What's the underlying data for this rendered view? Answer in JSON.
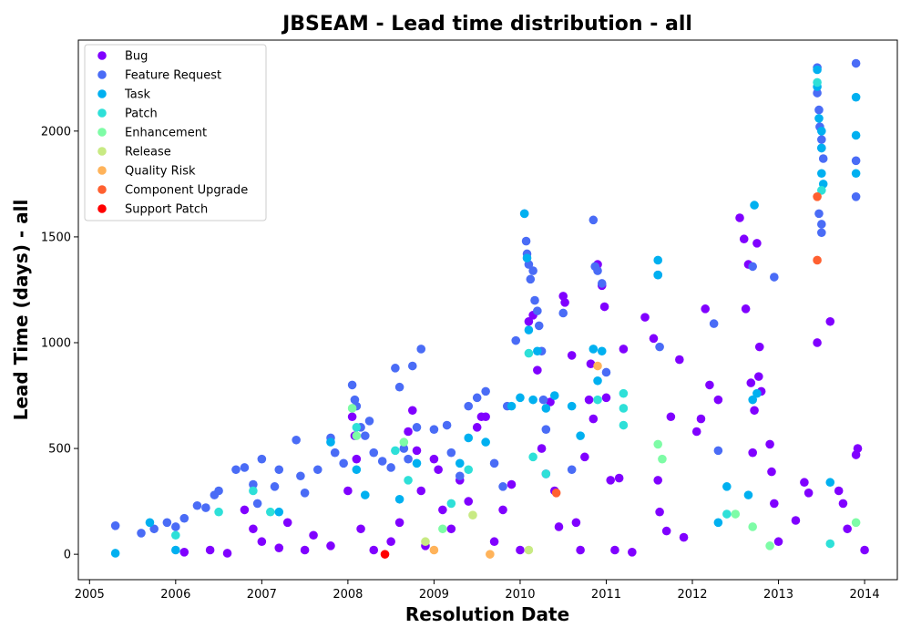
{
  "chart_data": {
    "type": "scatter",
    "title": "JBSEAM - Lead time distribution - all",
    "xlabel": "Resolution Date",
    "ylabel": "Lead Time (days) - all",
    "xlim": [
      2004.87,
      2014.38
    ],
    "ylim": [
      -120,
      2430
    ],
    "xticks": [
      2005,
      2006,
      2007,
      2008,
      2009,
      2010,
      2011,
      2012,
      2013,
      2014
    ],
    "yticks": [
      0,
      500,
      1000,
      1500,
      2000
    ],
    "grid": false,
    "legend_position": "top-left",
    "series": [
      {
        "name": "Bug",
        "color": "#8000ff",
        "points": [
          [
            2006.1,
            10
          ],
          [
            2006.4,
            20
          ],
          [
            2006.6,
            5
          ],
          [
            2006.8,
            210
          ],
          [
            2006.9,
            120
          ],
          [
            2007.0,
            60
          ],
          [
            2007.2,
            30
          ],
          [
            2007.3,
            150
          ],
          [
            2007.5,
            20
          ],
          [
            2007.6,
            90
          ],
          [
            2007.8,
            40
          ],
          [
            2008.0,
            300
          ],
          [
            2008.05,
            650
          ],
          [
            2008.08,
            560
          ],
          [
            2008.1,
            450
          ],
          [
            2008.15,
            120
          ],
          [
            2008.3,
            20
          ],
          [
            2008.5,
            60
          ],
          [
            2008.6,
            150
          ],
          [
            2008.7,
            580
          ],
          [
            2008.75,
            680
          ],
          [
            2008.8,
            490
          ],
          [
            2008.85,
            300
          ],
          [
            2008.9,
            40
          ],
          [
            2009.0,
            450
          ],
          [
            2009.05,
            400
          ],
          [
            2009.1,
            210
          ],
          [
            2009.2,
            120
          ],
          [
            2009.3,
            350
          ],
          [
            2009.4,
            250
          ],
          [
            2009.5,
            600
          ],
          [
            2009.55,
            650
          ],
          [
            2009.6,
            650
          ],
          [
            2009.7,
            60
          ],
          [
            2009.8,
            210
          ],
          [
            2009.9,
            330
          ],
          [
            2010.0,
            20
          ],
          [
            2010.1,
            1100
          ],
          [
            2010.15,
            1130
          ],
          [
            2010.2,
            870
          ],
          [
            2010.25,
            500
          ],
          [
            2010.3,
            380
          ],
          [
            2010.35,
            720
          ],
          [
            2010.4,
            300
          ],
          [
            2010.45,
            130
          ],
          [
            2010.5,
            1220
          ],
          [
            2010.52,
            1190
          ],
          [
            2010.6,
            940
          ],
          [
            2010.65,
            150
          ],
          [
            2010.7,
            20
          ],
          [
            2010.75,
            460
          ],
          [
            2010.8,
            730
          ],
          [
            2010.82,
            900
          ],
          [
            2010.85,
            640
          ],
          [
            2010.9,
            1370
          ],
          [
            2010.95,
            1270
          ],
          [
            2010.98,
            1170
          ],
          [
            2011.0,
            740
          ],
          [
            2011.05,
            350
          ],
          [
            2011.1,
            20
          ],
          [
            2011.15,
            360
          ],
          [
            2011.2,
            970
          ],
          [
            2011.3,
            10
          ],
          [
            2011.45,
            1120
          ],
          [
            2011.55,
            1020
          ],
          [
            2011.6,
            350
          ],
          [
            2011.62,
            200
          ],
          [
            2011.7,
            110
          ],
          [
            2011.75,
            650
          ],
          [
            2011.85,
            920
          ],
          [
            2011.9,
            80
          ],
          [
            2012.05,
            580
          ],
          [
            2012.1,
            640
          ],
          [
            2012.15,
            1160
          ],
          [
            2012.2,
            800
          ],
          [
            2012.3,
            730
          ],
          [
            2012.55,
            1590
          ],
          [
            2012.6,
            1490
          ],
          [
            2012.62,
            1160
          ],
          [
            2012.65,
            1370
          ],
          [
            2012.68,
            810
          ],
          [
            2012.7,
            480
          ],
          [
            2012.72,
            680
          ],
          [
            2012.75,
            1470
          ],
          [
            2012.77,
            840
          ],
          [
            2012.78,
            980
          ],
          [
            2012.8,
            770
          ],
          [
            2012.9,
            520
          ],
          [
            2012.92,
            390
          ],
          [
            2012.95,
            240
          ],
          [
            2013.0,
            60
          ],
          [
            2013.2,
            160
          ],
          [
            2013.3,
            340
          ],
          [
            2013.35,
            290
          ],
          [
            2013.45,
            1000
          ],
          [
            2013.6,
            1100
          ],
          [
            2013.7,
            300
          ],
          [
            2013.75,
            240
          ],
          [
            2013.8,
            120
          ],
          [
            2013.9,
            470
          ],
          [
            2013.92,
            500
          ],
          [
            2014.0,
            20
          ]
        ]
      },
      {
        "name": "Feature Request",
        "color": "#4a6cf6",
        "points": [
          [
            2005.3,
            135
          ],
          [
            2005.6,
            100
          ],
          [
            2005.75,
            120
          ],
          [
            2005.9,
            150
          ],
          [
            2006.0,
            130
          ],
          [
            2006.1,
            170
          ],
          [
            2006.25,
            230
          ],
          [
            2006.35,
            220
          ],
          [
            2006.45,
            280
          ],
          [
            2006.5,
            300
          ],
          [
            2006.7,
            400
          ],
          [
            2006.8,
            410
          ],
          [
            2006.9,
            330
          ],
          [
            2006.95,
            240
          ],
          [
            2007.0,
            450
          ],
          [
            2007.15,
            320
          ],
          [
            2007.2,
            400
          ],
          [
            2007.4,
            540
          ],
          [
            2007.45,
            370
          ],
          [
            2007.5,
            290
          ],
          [
            2007.65,
            400
          ],
          [
            2007.8,
            550
          ],
          [
            2007.85,
            480
          ],
          [
            2007.95,
            430
          ],
          [
            2008.05,
            800
          ],
          [
            2008.08,
            730
          ],
          [
            2008.1,
            700
          ],
          [
            2008.15,
            600
          ],
          [
            2008.2,
            560
          ],
          [
            2008.25,
            630
          ],
          [
            2008.3,
            480
          ],
          [
            2008.4,
            440
          ],
          [
            2008.5,
            410
          ],
          [
            2008.55,
            880
          ],
          [
            2008.6,
            790
          ],
          [
            2008.65,
            500
          ],
          [
            2008.7,
            450
          ],
          [
            2008.75,
            890
          ],
          [
            2008.8,
            600
          ],
          [
            2008.85,
            970
          ],
          [
            2009.0,
            590
          ],
          [
            2009.15,
            610
          ],
          [
            2009.2,
            480
          ],
          [
            2009.3,
            370
          ],
          [
            2009.4,
            700
          ],
          [
            2009.5,
            740
          ],
          [
            2009.6,
            770
          ],
          [
            2009.7,
            430
          ],
          [
            2009.8,
            320
          ],
          [
            2009.85,
            700
          ],
          [
            2009.95,
            1010
          ],
          [
            2010.05,
            1610
          ],
          [
            2010.07,
            1480
          ],
          [
            2010.08,
            1420
          ],
          [
            2010.1,
            1370
          ],
          [
            2010.12,
            1300
          ],
          [
            2010.15,
            1340
          ],
          [
            2010.17,
            1200
          ],
          [
            2010.2,
            1150
          ],
          [
            2010.22,
            1080
          ],
          [
            2010.25,
            960
          ],
          [
            2010.27,
            730
          ],
          [
            2010.3,
            590
          ],
          [
            2010.5,
            1140
          ],
          [
            2010.6,
            400
          ],
          [
            2010.85,
            1580
          ],
          [
            2010.87,
            1360
          ],
          [
            2010.9,
            1340
          ],
          [
            2010.95,
            1280
          ],
          [
            2011.0,
            860
          ],
          [
            2011.6,
            1320
          ],
          [
            2011.62,
            980
          ],
          [
            2012.25,
            1090
          ],
          [
            2012.3,
            490
          ],
          [
            2012.7,
            1360
          ],
          [
            2012.95,
            1310
          ],
          [
            2013.45,
            2300
          ],
          [
            2013.45,
            2180
          ],
          [
            2013.47,
            2100
          ],
          [
            2013.48,
            2020
          ],
          [
            2013.5,
            1960
          ],
          [
            2013.5,
            1920
          ],
          [
            2013.52,
            1870
          ],
          [
            2013.47,
            1610
          ],
          [
            2013.5,
            1560
          ],
          [
            2013.5,
            1520
          ],
          [
            2013.9,
            2320
          ],
          [
            2013.9,
            1860
          ],
          [
            2013.9,
            1690
          ]
        ]
      },
      {
        "name": "Task",
        "color": "#00b0f0",
        "points": [
          [
            2005.3,
            5
          ],
          [
            2005.7,
            150
          ],
          [
            2006.0,
            20
          ],
          [
            2007.2,
            200
          ],
          [
            2007.8,
            530
          ],
          [
            2008.1,
            400
          ],
          [
            2008.2,
            280
          ],
          [
            2008.6,
            260
          ],
          [
            2008.8,
            430
          ],
          [
            2009.3,
            430
          ],
          [
            2009.4,
            550
          ],
          [
            2009.6,
            530
          ],
          [
            2009.9,
            700
          ],
          [
            2010.0,
            740
          ],
          [
            2010.05,
            1610
          ],
          [
            2010.08,
            1400
          ],
          [
            2010.1,
            1060
          ],
          [
            2010.15,
            730
          ],
          [
            2010.2,
            960
          ],
          [
            2010.3,
            690
          ],
          [
            2010.4,
            750
          ],
          [
            2010.6,
            700
          ],
          [
            2010.7,
            560
          ],
          [
            2010.85,
            970
          ],
          [
            2010.9,
            820
          ],
          [
            2010.95,
            960
          ],
          [
            2011.6,
            1390
          ],
          [
            2011.6,
            1320
          ],
          [
            2012.3,
            150
          ],
          [
            2012.4,
            320
          ],
          [
            2012.65,
            280
          ],
          [
            2012.7,
            730
          ],
          [
            2012.72,
            1650
          ],
          [
            2012.75,
            760
          ],
          [
            2013.45,
            2290
          ],
          [
            2013.45,
            2210
          ],
          [
            2013.47,
            2060
          ],
          [
            2013.5,
            2000
          ],
          [
            2013.5,
            1920
          ],
          [
            2013.5,
            1800
          ],
          [
            2013.52,
            1750
          ],
          [
            2013.6,
            340
          ],
          [
            2013.9,
            2160
          ],
          [
            2013.9,
            1980
          ],
          [
            2013.9,
            1800
          ]
        ]
      },
      {
        "name": "Patch",
        "color": "#2ee0d8",
        "points": [
          [
            2006.0,
            90
          ],
          [
            2006.5,
            200
          ],
          [
            2006.9,
            300
          ],
          [
            2007.1,
            200
          ],
          [
            2008.1,
            600
          ],
          [
            2008.55,
            490
          ],
          [
            2008.7,
            350
          ],
          [
            2009.2,
            240
          ],
          [
            2009.4,
            400
          ],
          [
            2010.1,
            950
          ],
          [
            2010.15,
            460
          ],
          [
            2010.3,
            380
          ],
          [
            2010.9,
            730
          ],
          [
            2011.2,
            760
          ],
          [
            2011.2,
            690
          ],
          [
            2011.2,
            610
          ],
          [
            2012.4,
            190
          ],
          [
            2013.45,
            2230
          ],
          [
            2013.5,
            1720
          ],
          [
            2013.6,
            50
          ]
        ]
      },
      {
        "name": "Enhancement",
        "color": "#7efca6",
        "points": [
          [
            2008.05,
            690
          ],
          [
            2008.1,
            560
          ],
          [
            2008.65,
            530
          ],
          [
            2009.1,
            120
          ],
          [
            2011.6,
            520
          ],
          [
            2011.65,
            450
          ],
          [
            2012.5,
            190
          ],
          [
            2012.7,
            130
          ],
          [
            2012.9,
            40
          ],
          [
            2013.9,
            150
          ]
        ]
      },
      {
        "name": "Release",
        "color": "#c8ea83",
        "points": [
          [
            2009.45,
            185
          ],
          [
            2008.9,
            60
          ],
          [
            2010.1,
            20
          ]
        ]
      },
      {
        "name": "Quality Risk",
        "color": "#ffb35a",
        "points": [
          [
            2009.0,
            20
          ],
          [
            2009.65,
            0
          ],
          [
            2010.9,
            890
          ]
        ]
      },
      {
        "name": "Component  Upgrade",
        "color": "#ff6030",
        "points": [
          [
            2010.42,
            290
          ],
          [
            2013.45,
            1690
          ],
          [
            2013.45,
            1390
          ]
        ]
      },
      {
        "name": "Support Patch",
        "color": "#ff0000",
        "points": [
          [
            2008.43,
            0
          ]
        ]
      }
    ]
  }
}
